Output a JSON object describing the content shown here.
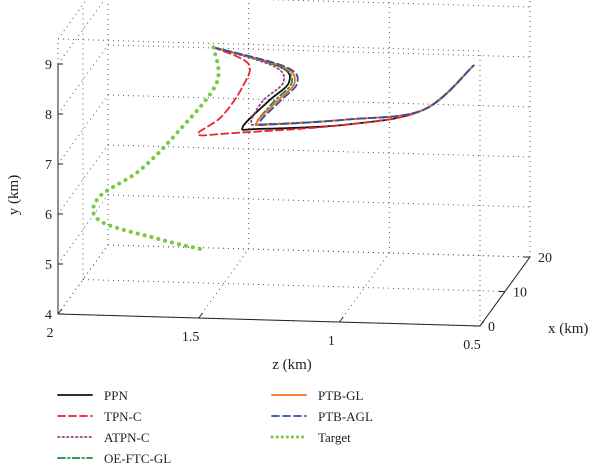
{
  "chart_data": {
    "type": "line",
    "projection": "3d",
    "grid": true,
    "legend_position": "bottom",
    "axes": {
      "x": {
        "label": "x (km)",
        "ticks": [
          "0",
          "10",
          "20"
        ],
        "range": [
          0,
          20
        ]
      },
      "y": {
        "label": "y (km)",
        "ticks": [
          "4",
          "5",
          "6",
          "7",
          "8",
          "9"
        ],
        "range": [
          4,
          9.5
        ]
      },
      "z": {
        "label": "z (km)",
        "ticks": [
          "2",
          "1.5",
          "1",
          "0.5"
        ],
        "range": [
          0.5,
          2
        ]
      }
    },
    "series": [
      {
        "name": "PPN",
        "color": "#111111",
        "dash": "solid",
        "points": [
          [
            0.3,
            1.45,
            9.4
          ],
          [
            4,
            1.25,
            8.8
          ],
          [
            8,
            1.25,
            8.2
          ],
          [
            11,
            1.35,
            7.6
          ],
          [
            12,
            1.45,
            7.0
          ],
          [
            13,
            1.4,
            6.9
          ],
          [
            15,
            1.1,
            6.9
          ],
          [
            17,
            0.85,
            7.1
          ],
          [
            20,
            0.7,
            7.8
          ]
        ]
      },
      {
        "name": "TPN-C",
        "color": "#e8262b",
        "dash": "dashed",
        "points": [
          [
            0.3,
            1.45,
            9.4
          ],
          [
            3,
            1.35,
            8.9
          ],
          [
            6,
            1.4,
            8.2
          ],
          [
            9,
            1.5,
            7.4
          ],
          [
            11,
            1.6,
            6.9
          ],
          [
            13,
            1.5,
            6.8
          ],
          [
            15,
            1.1,
            6.9
          ],
          [
            17,
            0.85,
            7.1
          ],
          [
            20,
            0.7,
            7.8
          ]
        ]
      },
      {
        "name": "ATPN-C",
        "color": "#9b3f86",
        "dash": "dotted",
        "points": [
          [
            0.3,
            1.45,
            9.4
          ],
          [
            4,
            1.27,
            8.8
          ],
          [
            8,
            1.27,
            8.2
          ],
          [
            11,
            1.37,
            7.6
          ],
          [
            12,
            1.42,
            7.1
          ],
          [
            13,
            1.38,
            7.0
          ],
          [
            15,
            1.1,
            7.0
          ],
          [
            17,
            0.85,
            7.1
          ],
          [
            20,
            0.7,
            7.8
          ]
        ]
      },
      {
        "name": "OE-FTC-GL",
        "color": "#1e8a3a",
        "dash": "dashdot",
        "points": [
          [
            0.3,
            1.45,
            9.4
          ],
          [
            4,
            1.25,
            8.8
          ],
          [
            8,
            1.24,
            8.2
          ],
          [
            11,
            1.33,
            7.6
          ],
          [
            12,
            1.4,
            7.1
          ],
          [
            13,
            1.37,
            7.0
          ],
          [
            15,
            1.1,
            7.0
          ],
          [
            17,
            0.85,
            7.1
          ],
          [
            20,
            0.7,
            7.8
          ]
        ]
      },
      {
        "name": "PTB-GL",
        "color": "#f26d21",
        "dash": "solid",
        "points": [
          [
            0.3,
            1.45,
            9.4
          ],
          [
            4,
            1.24,
            8.8
          ],
          [
            8,
            1.23,
            8.2
          ],
          [
            11,
            1.32,
            7.6
          ],
          [
            12,
            1.4,
            7.1
          ],
          [
            13,
            1.36,
            7.0
          ],
          [
            15,
            1.1,
            7.0
          ],
          [
            17,
            0.85,
            7.1
          ],
          [
            20,
            0.7,
            7.8
          ]
        ]
      },
      {
        "name": "PTB-AGL",
        "color": "#2f50a8",
        "dash": "dashed",
        "points": [
          [
            0.3,
            1.45,
            9.4
          ],
          [
            4,
            1.23,
            8.8
          ],
          [
            8,
            1.22,
            8.2
          ],
          [
            11,
            1.31,
            7.6
          ],
          [
            12,
            1.39,
            7.1
          ],
          [
            13,
            1.35,
            7.0
          ],
          [
            15,
            1.1,
            7.0
          ],
          [
            17,
            0.85,
            7.1
          ],
          [
            20,
            0.7,
            7.8
          ]
        ]
      },
      {
        "name": "Target",
        "color": "#7ac943",
        "dash": "dotted",
        "points": [
          [
            0.3,
            1.45,
            9.4
          ],
          [
            1.5,
            1.45,
            8.6
          ],
          [
            3,
            1.6,
            7.5
          ],
          [
            4.5,
            1.75,
            6.6
          ],
          [
            5,
            1.9,
            6.0
          ],
          [
            5.5,
            1.9,
            5.5
          ],
          [
            6.5,
            1.7,
            5.1
          ],
          [
            8,
            1.55,
            4.8
          ]
        ]
      }
    ]
  }
}
